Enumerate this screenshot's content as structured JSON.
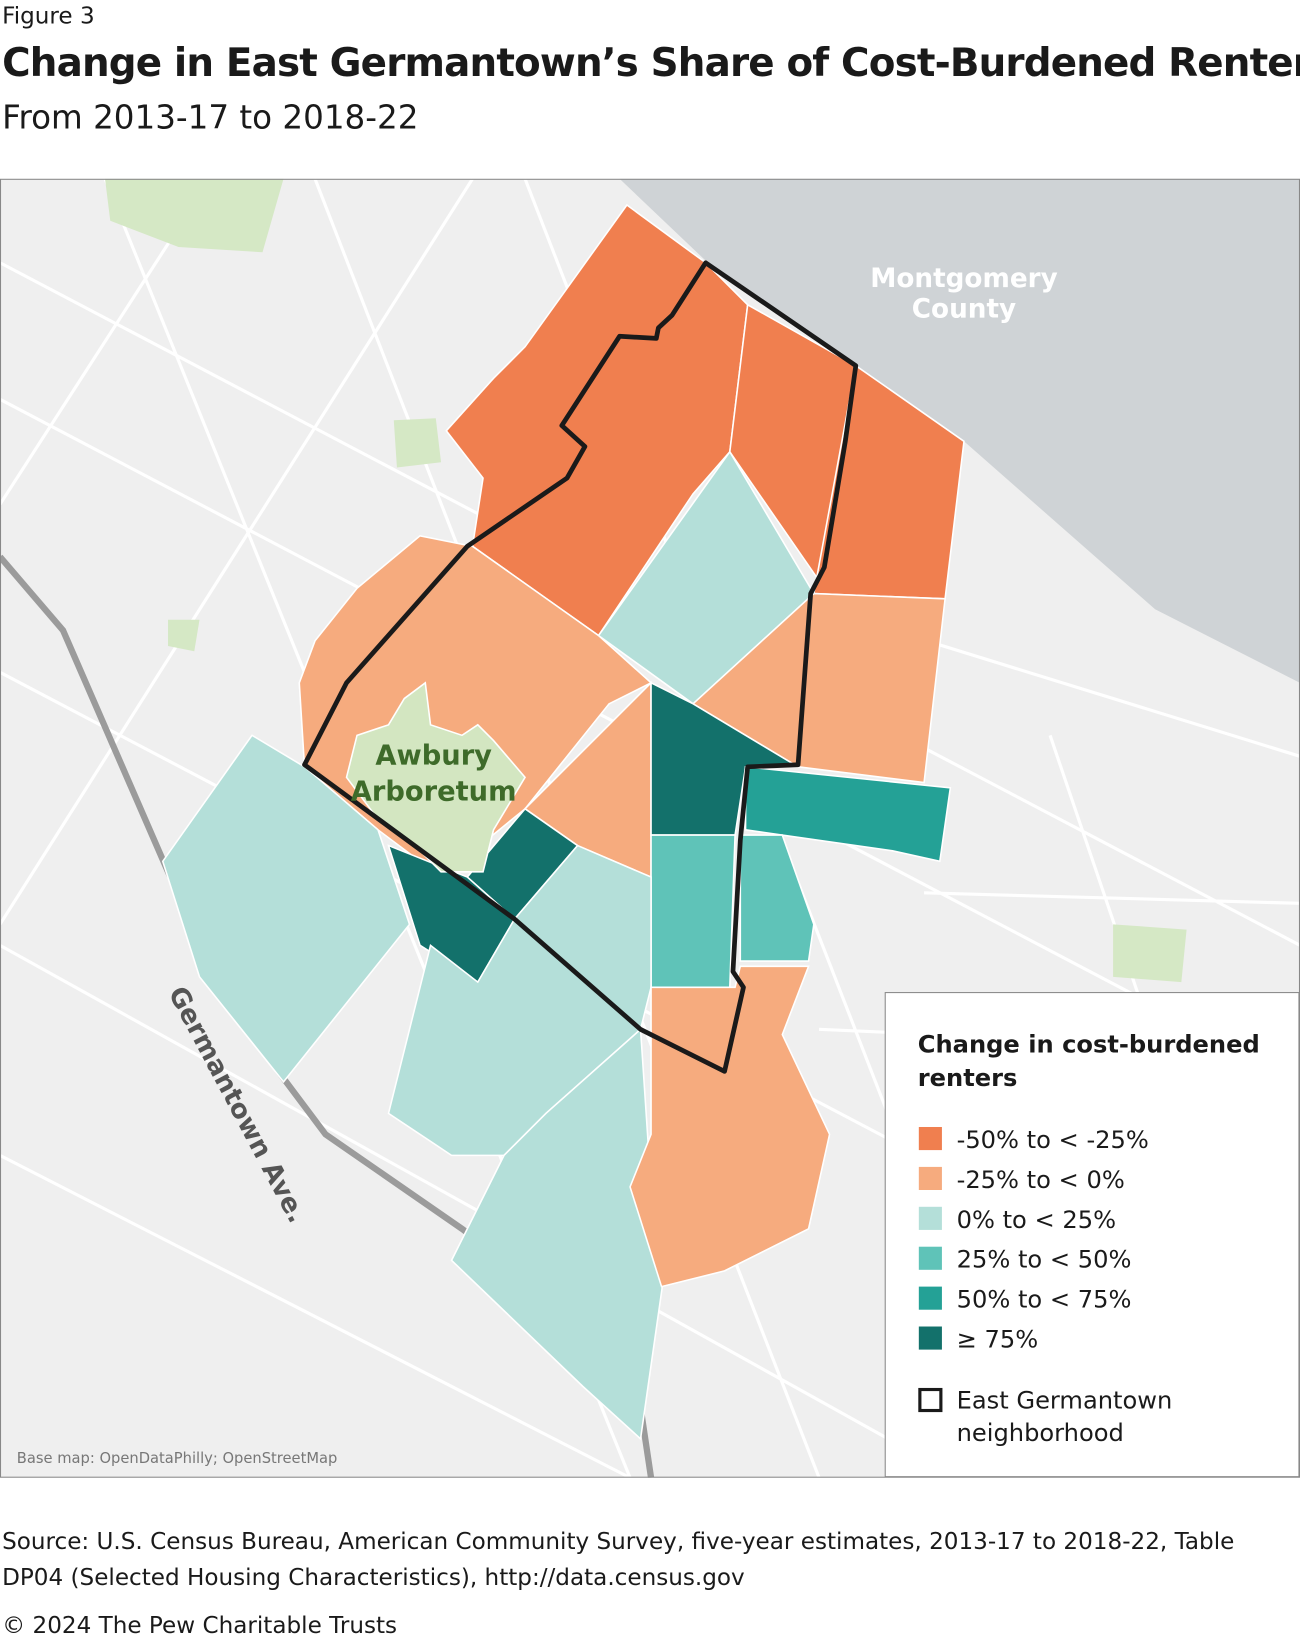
{
  "figure_label": "Figure 3",
  "title": "Change in East Germantown’s Share of Cost-Burdened Renters",
  "subtitle": "From 2013-17 to 2018-22",
  "map": {
    "county_label": [
      "Montgomery",
      "County"
    ],
    "park_label": [
      "Awbury",
      "Arboretum"
    ],
    "street_label": "Germantown Ave.",
    "credit": "Base map: OpenDataPhilly; OpenStreetMap"
  },
  "legend": {
    "title": [
      "Change in cost-burdened",
      "renters"
    ],
    "items": [
      {
        "label": "-50% to < -25%",
        "color": "#f07f4f"
      },
      {
        "label": "-25% to < 0%",
        "color": "#f6ab7e"
      },
      {
        "label": "0% to < 25%",
        "color": "#b4dfd9"
      },
      {
        "label": "25% to < 50%",
        "color": "#5fc3b8"
      },
      {
        "label": "50% to < 75%",
        "color": "#24a196"
      },
      {
        "label": "≥ 75%",
        "color": "#13716b"
      }
    ],
    "boundary": [
      "East Germantown",
      "neighborhood"
    ]
  },
  "source": [
    "Source: U.S. Census Bureau, American Community Survey, five-year estimates, 2013-17 to 2018-22, Table",
    "DP04 (Selected Housing Characteristics), http://data.census.gov"
  ],
  "copyright": "© 2024 The Pew Charitable Trusts"
}
